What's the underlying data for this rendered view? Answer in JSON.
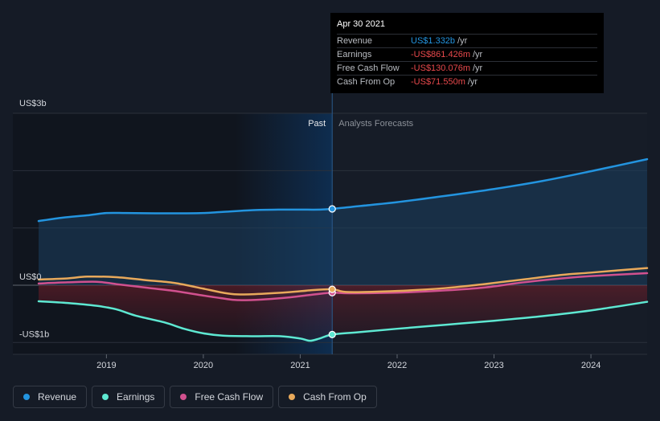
{
  "chart_data": {
    "type": "line",
    "x_range": [
      2018.3,
      2024.58
    ],
    "ylim": [
      -1.0,
      3.0
    ],
    "divider_x": 2021.33,
    "forecast_shade_start": 2020.33,
    "x_ticks": [
      {
        "value": 2019,
        "label": "2019"
      },
      {
        "value": 2020,
        "label": "2020"
      },
      {
        "value": 2021,
        "label": "2021"
      },
      {
        "value": 2022,
        "label": "2022"
      },
      {
        "value": 2023,
        "label": "2023"
      },
      {
        "value": 2024,
        "label": "2024"
      }
    ],
    "y_labels": [
      {
        "value": 3,
        "label": "US$3b"
      },
      {
        "value": 0,
        "label": "US$0"
      },
      {
        "value": -1,
        "label": "-US$1b"
      }
    ],
    "gridlines": [
      3,
      2,
      1,
      0,
      -1
    ],
    "past_label": "Past",
    "forecast_label": "Analysts Forecasts",
    "series": [
      {
        "name": "Revenue",
        "color": "#2394df",
        "x": [
          2018.3,
          2018.55,
          2018.8,
          2019.0,
          2019.2,
          2019.5,
          2019.8,
          2020.0,
          2020.2,
          2020.5,
          2020.8,
          2021.0,
          2021.2,
          2021.33,
          2021.6,
          2022.0,
          2022.5,
          2023.0,
          2023.5,
          2024.0,
          2024.58
        ],
        "values": [
          1.12,
          1.18,
          1.22,
          1.26,
          1.26,
          1.255,
          1.255,
          1.26,
          1.28,
          1.31,
          1.32,
          1.32,
          1.32,
          1.332,
          1.38,
          1.45,
          1.56,
          1.68,
          1.82,
          1.99,
          2.2
        ]
      },
      {
        "name": "Earnings",
        "color": "#5ee8d2",
        "x": [
          2018.3,
          2018.6,
          2018.9,
          2019.1,
          2019.3,
          2019.6,
          2019.8,
          2020.0,
          2020.2,
          2020.5,
          2020.8,
          2021.0,
          2021.1,
          2021.2,
          2021.33,
          2021.6,
          2022.0,
          2022.5,
          2023.0,
          2023.5,
          2024.0,
          2024.58
        ],
        "values": [
          -0.28,
          -0.31,
          -0.36,
          -0.42,
          -0.53,
          -0.65,
          -0.76,
          -0.84,
          -0.88,
          -0.89,
          -0.89,
          -0.93,
          -0.97,
          -0.93,
          -0.861,
          -0.82,
          -0.76,
          -0.69,
          -0.62,
          -0.54,
          -0.44,
          -0.29
        ]
      },
      {
        "name": "Free Cash Flow",
        "color": "#d1518f",
        "x": [
          2018.3,
          2018.6,
          2018.9,
          2019.1,
          2019.4,
          2019.7,
          2020.0,
          2020.2,
          2020.35,
          2020.6,
          2020.9,
          2021.1,
          2021.33,
          2021.5,
          2022.0,
          2022.5,
          2022.9,
          2023.3,
          2023.7,
          2024.0,
          2024.58
        ],
        "values": [
          0.03,
          0.05,
          0.06,
          0.02,
          -0.04,
          -0.1,
          -0.18,
          -0.23,
          -0.26,
          -0.25,
          -0.21,
          -0.17,
          -0.13,
          -0.14,
          -0.13,
          -0.09,
          -0.04,
          0.05,
          0.12,
          0.16,
          0.21
        ]
      },
      {
        "name": "Cash From Op",
        "color": "#e8a95b",
        "x": [
          2018.3,
          2018.6,
          2018.8,
          2019.1,
          2019.4,
          2019.7,
          2020.0,
          2020.2,
          2020.35,
          2020.6,
          2020.9,
          2021.1,
          2021.33,
          2021.5,
          2022.0,
          2022.5,
          2022.9,
          2023.3,
          2023.7,
          2024.0,
          2024.58
        ],
        "values": [
          0.1,
          0.12,
          0.15,
          0.14,
          0.09,
          0.04,
          -0.06,
          -0.13,
          -0.16,
          -0.15,
          -0.12,
          -0.09,
          -0.07,
          -0.12,
          -0.1,
          -0.05,
          0.02,
          0.1,
          0.18,
          0.22,
          0.3
        ]
      }
    ],
    "markers": [
      {
        "series": 0,
        "x": 2021.33,
        "value": 1.332
      },
      {
        "series": 1,
        "x": 2021.33,
        "value": -0.861
      },
      {
        "series": 2,
        "x": 2021.33,
        "value": -0.13
      },
      {
        "series": 3,
        "x": 2021.33,
        "value": -0.0716
      }
    ]
  },
  "tooltip": {
    "date": "Apr 30 2021",
    "rows": [
      {
        "label": "Revenue",
        "value": "US$1.332b",
        "unit": "/yr"
      },
      {
        "label": "Earnings",
        "value": "-US$861.426m",
        "unit": "/yr"
      },
      {
        "label": "Free Cash Flow",
        "value": "-US$130.076m",
        "unit": "/yr"
      },
      {
        "label": "Cash From Op",
        "value": "-US$71.550m",
        "unit": "/yr"
      }
    ]
  },
  "legend": [
    {
      "label": "Revenue",
      "color": "#2394df"
    },
    {
      "label": "Earnings",
      "color": "#5ee8d2"
    },
    {
      "label": "Free Cash Flow",
      "color": "#d1518f"
    },
    {
      "label": "Cash From Op",
      "color": "#e8a95b"
    }
  ]
}
